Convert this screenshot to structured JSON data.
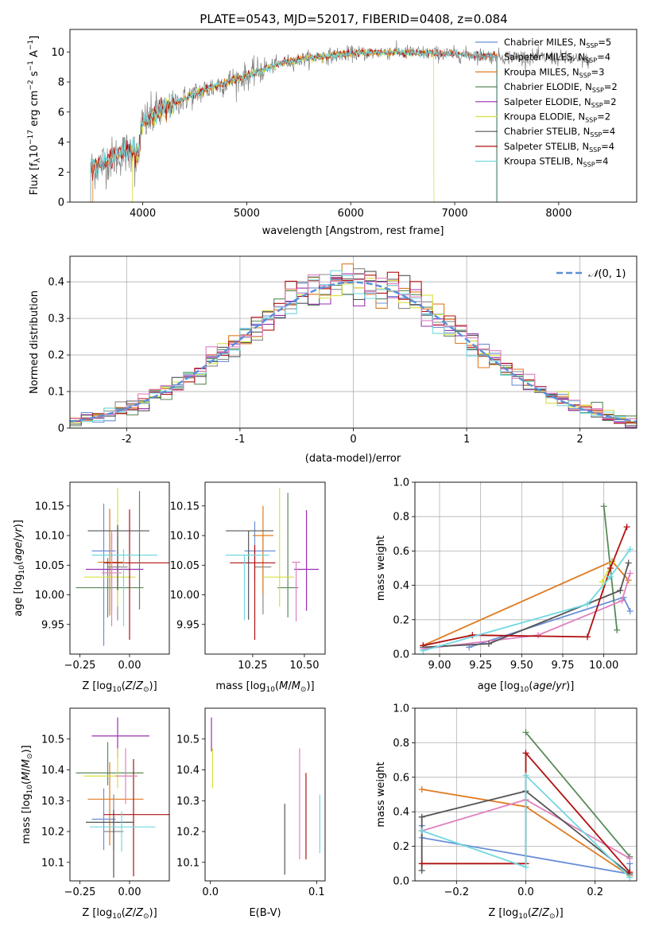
{
  "figure": {
    "title": "PLATE=0543, MJD=52017, FIBERID=0408, z=0.084"
  },
  "colors": {
    "Chabrier MILES": "#6a8fd8",
    "Salpeter MILES": "#8a8a8a",
    "Kroupa MILES": "#e07a20",
    "Chabrier ELODIE": "#5a8a5a",
    "Salpeter ELODIE": "#9b30b0",
    "Kroupa ELODIE": "#d8e040",
    "Chabrier STELIB": "#555555",
    "Salpeter STELIB": "#b01010",
    "Kroupa STELIB": "#70d8e0",
    "pink": "#e080c0",
    "normal": "#5a8fd8"
  },
  "chart_data": [
    {
      "id": "spectrum",
      "type": "line",
      "title": "PLATE=0543, MJD=52017, FIBERID=0408, z=0.084",
      "xlabel": "wavelength [Angstrom, rest frame]",
      "ylabel": "Flux [f_λ 10^-17 erg cm^-2 s^-1 A^-1]",
      "xlim": [
        3300,
        8750
      ],
      "ylim": [
        0,
        11.5
      ],
      "xticks": [
        4000,
        5000,
        6000,
        7000,
        8000
      ],
      "yticks": [
        0,
        2,
        4,
        6,
        8,
        10
      ],
      "grid": false,
      "legend_position": "upper-right",
      "legend": [
        {
          "name": "Chabrier MILES, N",
          "sub": "SSP",
          "tail": "=5"
        },
        {
          "name": "Salpeter MILES, N",
          "sub": "SSP",
          "tail": "=4"
        },
        {
          "name": "Kroupa MILES, N",
          "sub": "SSP",
          "tail": "=3"
        },
        {
          "name": "Chabrier ELODIE, N",
          "sub": "SSP",
          "tail": "=2"
        },
        {
          "name": "Salpeter ELODIE, N",
          "sub": "SSP",
          "tail": "=2"
        },
        {
          "name": "Kroupa ELODIE, N",
          "sub": "SSP",
          "tail": "=2"
        },
        {
          "name": "Chabrier STELIB, N",
          "sub": "SSP",
          "tail": "=4"
        },
        {
          "name": "Salpeter STELIB, N",
          "sub": "SSP",
          "tail": "=4"
        },
        {
          "name": "Kroupa STELIB, N",
          "sub": "SSP",
          "tail": "=4"
        }
      ],
      "continuum": [
        [
          3500,
          2.2
        ],
        [
          3700,
          2.9
        ],
        [
          3900,
          3.5
        ],
        [
          4000,
          5.2
        ],
        [
          4200,
          6.2
        ],
        [
          4500,
          7.2
        ],
        [
          4800,
          8.0
        ],
        [
          5000,
          8.4
        ],
        [
          5300,
          9.2
        ],
        [
          5600,
          9.6
        ],
        [
          6000,
          9.9
        ],
        [
          6400,
          10.0
        ],
        [
          6800,
          9.9
        ],
        [
          7200,
          9.8
        ],
        [
          7400,
          9.7
        ],
        [
          8000,
          9.6
        ],
        [
          8300,
          9.4
        ]
      ],
      "data_range": [
        3500,
        8300
      ],
      "model_ranges": {
        "MILES": [
          3520,
          7410
        ],
        "ELODIE": [
          3900,
          6800
        ],
        "STELIB": [
          3500,
          7400
        ]
      }
    },
    {
      "id": "normed",
      "type": "line",
      "xlabel": "(data-model)/error",
      "ylabel": "Normed distribution",
      "xlim": [
        -2.5,
        2.5
      ],
      "ylim": [
        0,
        0.47
      ],
      "xticks": [
        -2,
        -1,
        0,
        1,
        2
      ],
      "yticks": [
        0.0,
        0.1,
        0.2,
        0.3,
        0.4
      ],
      "grid": true,
      "legend_position": "upper-right",
      "legend": [
        "N(0,1)"
      ],
      "bin_width": 0.1
    },
    {
      "id": "age-vs-Z",
      "type": "scatter",
      "xlabel": "Z [log10(Z/Z☉)]",
      "ylabel": "age [log10(age/yr)]",
      "xlim": [
        -0.3,
        0.2
      ],
      "ylim": [
        9.9,
        10.19
      ],
      "xticks": [
        -0.25,
        0.0
      ],
      "xtick_labels": [
        "−0.25",
        "0.00"
      ],
      "yticks": [
        9.95,
        10.0,
        10.05,
        10.1,
        10.15
      ],
      "ytick_labels": [
        "9.95",
        "10.00",
        "10.05",
        "10.10",
        "10.15"
      ],
      "grid": false,
      "points": [
        {
          "c": "#6a8fd8",
          "x": -0.13,
          "xe": [
            0.06,
            0.06
          ],
          "y": 10.074,
          "ye": [
            0.16,
            0.08
          ]
        },
        {
          "c": "#8a8a8a",
          "x": -0.06,
          "xe": [
            0.05,
            0.05
          ],
          "y": 10.047,
          "ye": [
            0.09,
            0.05
          ]
        },
        {
          "c": "#e07a20",
          "x": -0.1,
          "xe": [
            0.06,
            0.07
          ],
          "y": 10.055,
          "ye": [
            0.09,
            0.09
          ]
        },
        {
          "c": "#5a8a5a",
          "x": -0.11,
          "xe": [
            0.16,
            0.18
          ],
          "y": 10.012,
          "ye": [
            0.05,
            0.05
          ]
        },
        {
          "c": "#9b30b0",
          "x": -0.09,
          "xe": [
            0.13,
            0.16
          ],
          "y": 10.043,
          "ye": [
            0.07,
            0.06
          ]
        },
        {
          "c": "#d8e040",
          "x": -0.06,
          "xe": [
            0.17,
            0.09
          ],
          "y": 10.03,
          "ye": [
            0.05,
            0.15
          ]
        },
        {
          "c": "#555555",
          "x": -0.06,
          "xe": [
            0.15,
            0.16
          ],
          "y": 10.108,
          "ye": [
            0.1,
            0.01
          ]
        },
        {
          "c": "#b01010",
          "x": 0.0,
          "xe": [
            0.13,
            0.2
          ],
          "y": 10.054,
          "ye": [
            0.13,
            0.09
          ]
        },
        {
          "c": "#70d8e0",
          "x": -0.03,
          "xe": [
            0.16,
            0.17
          ],
          "y": 10.067,
          "ye": [
            0.12,
            0.01
          ]
        },
        {
          "c": "#e080c0",
          "x": -0.09,
          "xe": [
            0.05,
            0.05
          ],
          "y": 10.037,
          "ye": [
            0.09,
            0.07
          ]
        },
        {
          "c": "#5a8a5a",
          "x": 0.05,
          "xe": [
            0.0,
            0.0
          ],
          "y": 10.075,
          "ye": [
            0.1,
            0.1
          ]
        }
      ]
    },
    {
      "id": "age-vs-mass",
      "type": "scatter",
      "xlabel": "mass [log10(M/M☉)]",
      "ylabel": "",
      "xlim": [
        10.02,
        10.6
      ],
      "ylim": [
        9.9,
        10.19
      ],
      "xticks": [
        10.25,
        10.5
      ],
      "xtick_labels": [
        "10.25",
        "10.50"
      ],
      "yticks": [
        9.95,
        10.0,
        10.05,
        10.1,
        10.15
      ],
      "ytick_labels": [
        "9.95",
        "10.00",
        "10.05",
        "10.10",
        "10.15"
      ],
      "grid": false,
      "points": [
        {
          "c": "#6a8fd8",
          "x": 10.26,
          "xe": [
            0.05,
            0.1
          ],
          "y": 10.074,
          "ye": [
            0.05,
            0.05
          ]
        },
        {
          "c": "#8a8a8a",
          "x": 10.3,
          "xe": [
            0.04,
            0.04
          ],
          "y": 10.047,
          "ye": [
            0.08,
            0.05
          ]
        },
        {
          "c": "#e07a20",
          "x": 10.3,
          "xe": [
            0.05,
            0.05
          ],
          "y": 10.1,
          "ye": [
            0.1,
            0.05
          ]
        },
        {
          "c": "#5a8a5a",
          "x": 10.42,
          "xe": [
            0.05,
            0.05
          ],
          "y": 10.012,
          "ye": [
            0.05,
            0.16
          ]
        },
        {
          "c": "#9b30b0",
          "x": 10.51,
          "xe": [
            0.06,
            0.06
          ],
          "y": 10.043,
          "ye": [
            0.07,
            0.1
          ]
        },
        {
          "c": "#d8e040",
          "x": 10.38,
          "xe": [
            0.08,
            0.07
          ],
          "y": 10.03,
          "ye": [
            0.05,
            0.15
          ]
        },
        {
          "c": "#555555",
          "x": 10.23,
          "xe": [
            0.11,
            0.12
          ],
          "y": 10.108,
          "ye": [
            0.15,
            0.0
          ]
        },
        {
          "c": "#b01010",
          "x": 10.26,
          "xe": [
            0.12,
            0.1
          ],
          "y": 10.054,
          "ye": [
            0.13,
            0.03
          ]
        },
        {
          "c": "#70d8e0",
          "x": 10.21,
          "xe": [
            0.09,
            0.12
          ],
          "y": 10.067,
          "ye": [
            0.11,
            0.0
          ]
        },
        {
          "c": "#e080c0",
          "x": 10.46,
          "xe": [
            0.02,
            0.02
          ],
          "y": 10.055,
          "ye": [
            0.1,
            0.0
          ]
        }
      ]
    },
    {
      "id": "weight-vs-age",
      "type": "line",
      "xlabel": "age [log10(age/yr)]",
      "ylabel": "mass weight",
      "xlim": [
        8.85,
        10.2
      ],
      "ylim": [
        0,
        1.0
      ],
      "xticks": [
        9.0,
        9.25,
        9.5,
        9.75,
        10.0
      ],
      "xtick_labels": [
        "9.00",
        "9.25",
        "9.50",
        "9.75",
        "10.00"
      ],
      "yticks": [
        0.0,
        0.2,
        0.4,
        0.6,
        0.8,
        1.0
      ],
      "ytick_labels": [
        "0.0",
        "0.2",
        "0.4",
        "0.6",
        "0.8",
        "1.0"
      ],
      "grid": true,
      "series": [
        {
          "c": "#6a8fd8",
          "x": [
            9.18,
            10.12,
            10.16
          ],
          "y": [
            0.04,
            0.33,
            0.25
          ]
        },
        {
          "c": "#e07a20",
          "x": [
            8.9,
            10.05,
            10.15
          ],
          "y": [
            0.05,
            0.54,
            0.43
          ]
        },
        {
          "c": "#5a8a5a",
          "x": [
            10.0,
            10.08
          ],
          "y": [
            0.86,
            0.14
          ]
        },
        {
          "c": "#d8e040",
          "x": [
            9.99,
            10.05
          ],
          "y": [
            0.42,
            0.53
          ]
        },
        {
          "c": "#e080c0",
          "x": [
            8.9,
            9.6,
            10.11,
            10.16
          ],
          "y": [
            0.03,
            0.11,
            0.31,
            0.47
          ]
        },
        {
          "c": "#555555",
          "x": [
            8.9,
            9.3,
            10.1,
            10.15
          ],
          "y": [
            0.04,
            0.06,
            0.37,
            0.53
          ]
        },
        {
          "c": "#b01010",
          "x": [
            8.9,
            9.2,
            9.9,
            10.04,
            10.14
          ],
          "y": [
            0.05,
            0.11,
            0.1,
            0.5,
            0.74
          ]
        },
        {
          "c": "#70d8e0",
          "x": [
            8.9,
            9.9,
            10.04,
            10.16
          ],
          "y": [
            0.02,
            0.29,
            0.45,
            0.61
          ]
        }
      ]
    },
    {
      "id": "mass-vs-Z",
      "type": "scatter",
      "xlabel": "Z [log10(Z/Z☉)]",
      "ylabel": "mass [log10(M/M☉)]",
      "xlim": [
        -0.3,
        0.2
      ],
      "ylim": [
        10.04,
        10.6
      ],
      "xticks": [
        -0.25,
        0.0
      ],
      "xtick_labels": [
        "−0.25",
        "0.00"
      ],
      "yticks": [
        10.1,
        10.2,
        10.3,
        10.4,
        10.5
      ],
      "ytick_labels": [
        "10.1",
        "10.2",
        "10.3",
        "10.4",
        "10.5"
      ],
      "grid": false,
      "points": [
        {
          "c": "#6a8fd8",
          "x": -0.13,
          "xe": [
            0.06,
            0.06
          ],
          "y": 10.24,
          "ye": [
            0.1,
            0.1
          ]
        },
        {
          "c": "#8a8a8a",
          "x": -0.08,
          "xe": [
            0.05,
            0.05
          ],
          "y": 10.2,
          "ye": [
            0.06,
            0.12
          ]
        },
        {
          "c": "#e07a20",
          "x": -0.1,
          "xe": [
            0.11,
            0.17
          ],
          "y": 10.305,
          "ye": [
            0.15,
            0.12
          ]
        },
        {
          "c": "#5a8a5a",
          "x": -0.11,
          "xe": [
            0.16,
            0.18
          ],
          "y": 10.39,
          "ye": [
            0.04,
            0.1
          ]
        },
        {
          "c": "#9b30b0",
          "x": -0.06,
          "xe": [
            0.13,
            0.16
          ],
          "y": 10.51,
          "ye": [
            0.07,
            0.06
          ]
        },
        {
          "c": "#d8e040",
          "x": -0.06,
          "xe": [
            0.17,
            0.09
          ],
          "y": 10.38,
          "ye": [
            0.04,
            0.09
          ]
        },
        {
          "c": "#555555",
          "x": -0.08,
          "xe": [
            0.14,
            0.1
          ],
          "y": 10.23,
          "ye": [
            0.18,
            0.04
          ]
        },
        {
          "c": "#b01010",
          "x": 0.02,
          "xe": [
            0.15,
            0.2
          ],
          "y": 10.255,
          "ye": [
            0.2,
            0.18
          ]
        },
        {
          "c": "#70d8e0",
          "x": -0.04,
          "xe": [
            0.16,
            0.17
          ],
          "y": 10.215,
          "ye": [
            0.08,
            0.05
          ]
        },
        {
          "c": "#e080c0",
          "x": -0.02,
          "xe": [
            0.05,
            0.06
          ],
          "y": 10.38,
          "ye": [
            0.09,
            0.09
          ]
        }
      ]
    },
    {
      "id": "mass-vs-EBV",
      "type": "scatter",
      "xlabel": "E(B-V)",
      "ylabel": "",
      "xlim": [
        -0.005,
        0.108
      ],
      "ylim": [
        10.04,
        10.6
      ],
      "xticks": [
        0.0,
        0.1
      ],
      "xtick_labels": [
        "0.0",
        "0.1"
      ],
      "yticks": [
        10.1,
        10.2,
        10.3,
        10.4,
        10.5
      ],
      "ytick_labels": [
        "10.1",
        "10.2",
        "10.3",
        "10.4",
        "10.5"
      ],
      "grid": false,
      "points": [
        {
          "c": "#9b30b0",
          "x": 0.001,
          "xe": [
            0,
            0
          ],
          "y": 10.51,
          "ye": [
            0.05,
            0.06
          ]
        },
        {
          "c": "#d8e040",
          "x": 0.002,
          "xe": [
            0,
            0
          ],
          "y": 10.38,
          "ye": [
            0.04,
            0.09
          ]
        },
        {
          "c": "#555555",
          "x": 0.07,
          "xe": [
            0,
            0
          ],
          "y": 10.2,
          "ye": [
            0.14,
            0.09
          ]
        },
        {
          "c": "#e080c0",
          "x": 0.084,
          "xe": [
            0,
            0
          ],
          "y": 10.36,
          "ye": [
            0.25,
            0.11
          ]
        },
        {
          "c": "#b01010",
          "x": 0.09,
          "xe": [
            0,
            0
          ],
          "y": 10.25,
          "ye": [
            0.14,
            0.14
          ]
        },
        {
          "c": "#70d8e0",
          "x": 0.103,
          "xe": [
            0,
            0
          ],
          "y": 10.22,
          "ye": [
            0.09,
            0.1
          ]
        }
      ]
    },
    {
      "id": "weight-vs-Z",
      "type": "line",
      "xlabel": "Z [log10(Z/Z☉)]",
      "ylabel": "mass weight",
      "xlim": [
        -0.32,
        0.32
      ],
      "ylim": [
        0,
        1.0
      ],
      "xticks": [
        -0.2,
        0.0,
        0.2
      ],
      "xtick_labels": [
        "−0.2",
        "0.0",
        "0.2"
      ],
      "yticks": [
        0.0,
        0.2,
        0.4,
        0.6,
        0.8,
        1.0
      ],
      "ytick_labels": [
        "0.0",
        "0.2",
        "0.4",
        "0.6",
        "0.8",
        "1.0"
      ],
      "grid": true,
      "series": [
        {
          "c": "#6a8fd8",
          "x": [
            -0.3,
            -0.3,
            0.3,
            0.3
          ],
          "y": [
            0.32,
            0.25,
            0.04,
            0.1
          ]
        },
        {
          "c": "#e07a20",
          "x": [
            -0.3,
            0.0,
            0.3
          ],
          "y": [
            0.53,
            0.43,
            0.03
          ]
        },
        {
          "c": "#5a8a5a",
          "x": [
            0.0,
            0.3
          ],
          "y": [
            0.86,
            0.14
          ]
        },
        {
          "c": "#e080c0",
          "x": [
            -0.3,
            0.0,
            0.3
          ],
          "y": [
            0.29,
            0.47,
            0.13
          ]
        },
        {
          "c": "#555555",
          "x": [
            -0.3,
            -0.3,
            0.0,
            0.3
          ],
          "y": [
            0.06,
            0.37,
            0.52,
            0.04
          ]
        },
        {
          "c": "#b01010",
          "x": [
            -0.3,
            0.0,
            0.0,
            0.3
          ],
          "y": [
            0.1,
            0.1,
            0.74,
            0.05
          ]
        },
        {
          "c": "#70d8e0",
          "x": [
            -0.3,
            0.0,
            0.0,
            0.3
          ],
          "y": [
            0.29,
            0.08,
            0.61,
            0.02
          ]
        }
      ]
    }
  ]
}
